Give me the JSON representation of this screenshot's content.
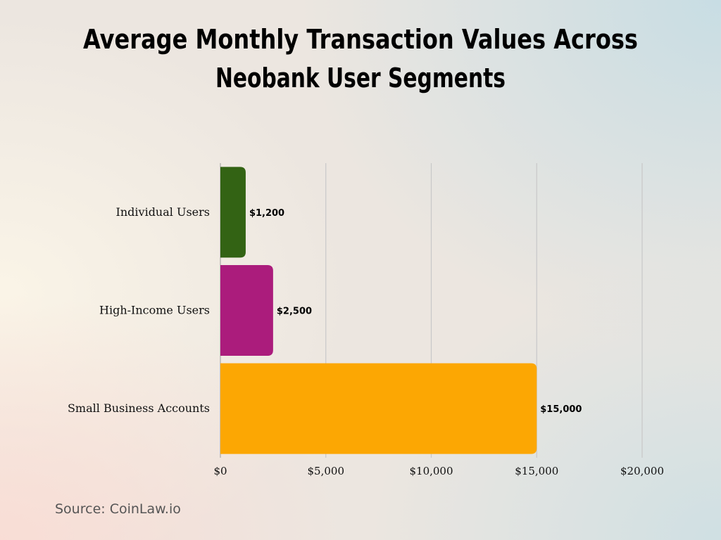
{
  "chart_data": {
    "type": "bar",
    "orientation": "horizontal",
    "title": [
      "Average Monthly Transaction Values Across",
      "Neobank User Segments"
    ],
    "categories": [
      "Individual Users",
      "High-Income Users",
      "Small Business Accounts"
    ],
    "values": [
      1200,
      2500,
      15000
    ],
    "data_labels": [
      "$1,200",
      "$2,500",
      "$15,000"
    ],
    "colors": [
      "#336314",
      "#ab1c7c",
      "#fca703"
    ],
    "xlim": [
      0,
      20000
    ],
    "xticks": [
      0,
      5000,
      10000,
      15000,
      20000
    ],
    "xtick_labels": [
      "$0",
      "$5,000",
      "$10,000",
      "$15,000",
      "$20,000"
    ],
    "grid": "vertical",
    "legend": "none"
  },
  "source": "Source: CoinLaw.io"
}
